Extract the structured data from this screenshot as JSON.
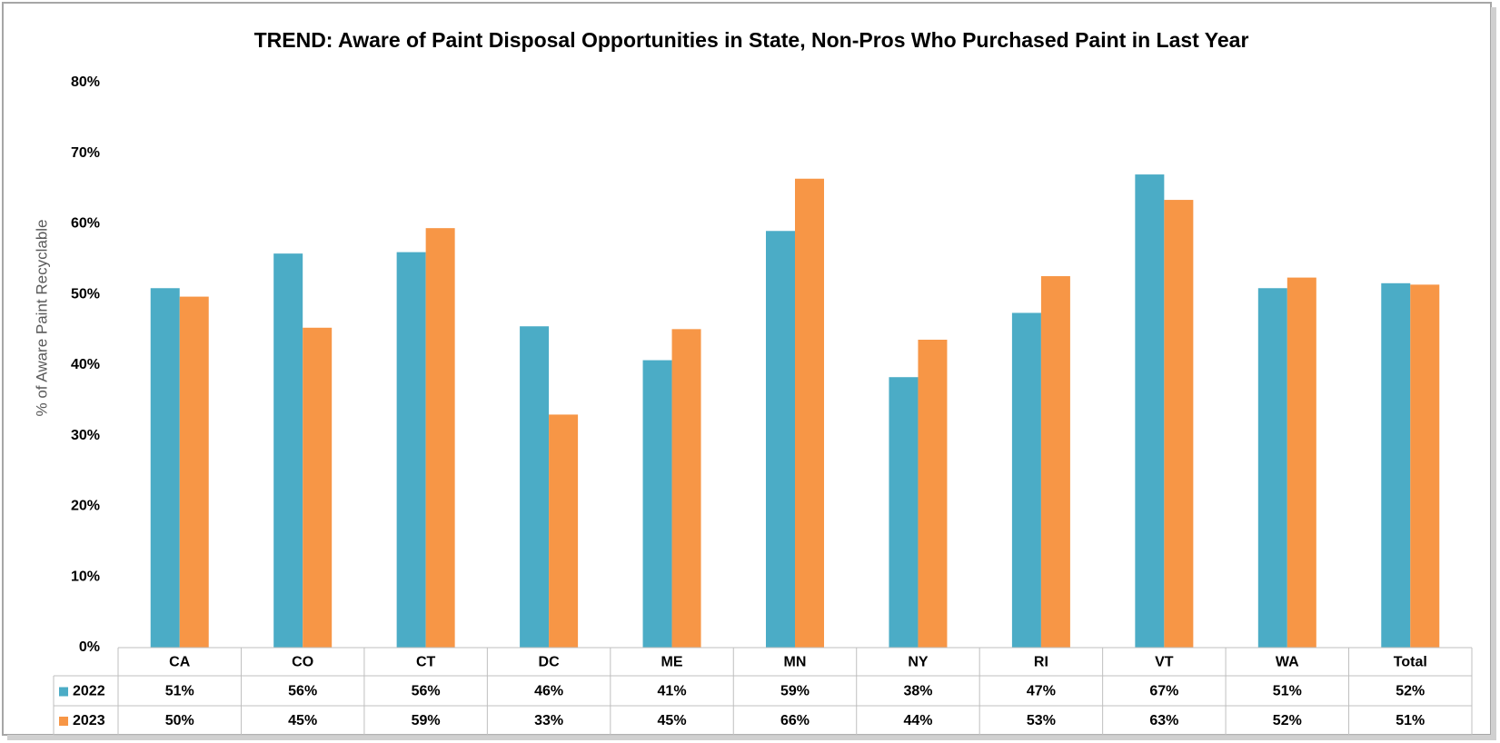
{
  "chart_data": {
    "type": "bar",
    "title": "TREND: Aware of Paint Disposal Opportunities in State, Non-Pros Who Purchased Paint in Last Year",
    "y_label": "% of Aware Paint Recyclable",
    "categories": [
      "CA",
      "CO",
      "CT",
      "DC",
      "ME",
      "MN",
      "NY",
      "RI",
      "VT",
      "WA",
      "Total"
    ],
    "series": [
      {
        "name": "2022",
        "color": "#4bacc6",
        "values": [
          50.9,
          55.8,
          56.0,
          45.5,
          40.7,
          59.0,
          38.3,
          47.4,
          67.0,
          50.9,
          51.6
        ],
        "value_labels": [
          "51%",
          "56%",
          "56%",
          "46%",
          "41%",
          "59%",
          "38%",
          "47%",
          "67%",
          "51%",
          "52%"
        ]
      },
      {
        "name": "2023",
        "color": "#f79646",
        "values": [
          49.7,
          45.3,
          59.4,
          33.0,
          45.1,
          66.4,
          43.6,
          52.6,
          63.4,
          52.4,
          51.4
        ],
        "value_labels": [
          "50%",
          "45%",
          "59%",
          "33%",
          "45%",
          "66%",
          "44%",
          "53%",
          "63%",
          "52%",
          "51%"
        ]
      }
    ],
    "ylim": [
      0,
      80
    ],
    "yticks": [
      {
        "value": 0,
        "label": "0%"
      },
      {
        "value": 10,
        "label": "10%"
      },
      {
        "value": 20,
        "label": "20%"
      },
      {
        "value": 30,
        "label": "30%"
      },
      {
        "value": 40,
        "label": "40%"
      },
      {
        "value": 50,
        "label": "50%"
      },
      {
        "value": 60,
        "label": "60%"
      },
      {
        "value": 70,
        "label": "70%"
      },
      {
        "value": 80,
        "label": "80%"
      }
    ],
    "grid": false
  }
}
